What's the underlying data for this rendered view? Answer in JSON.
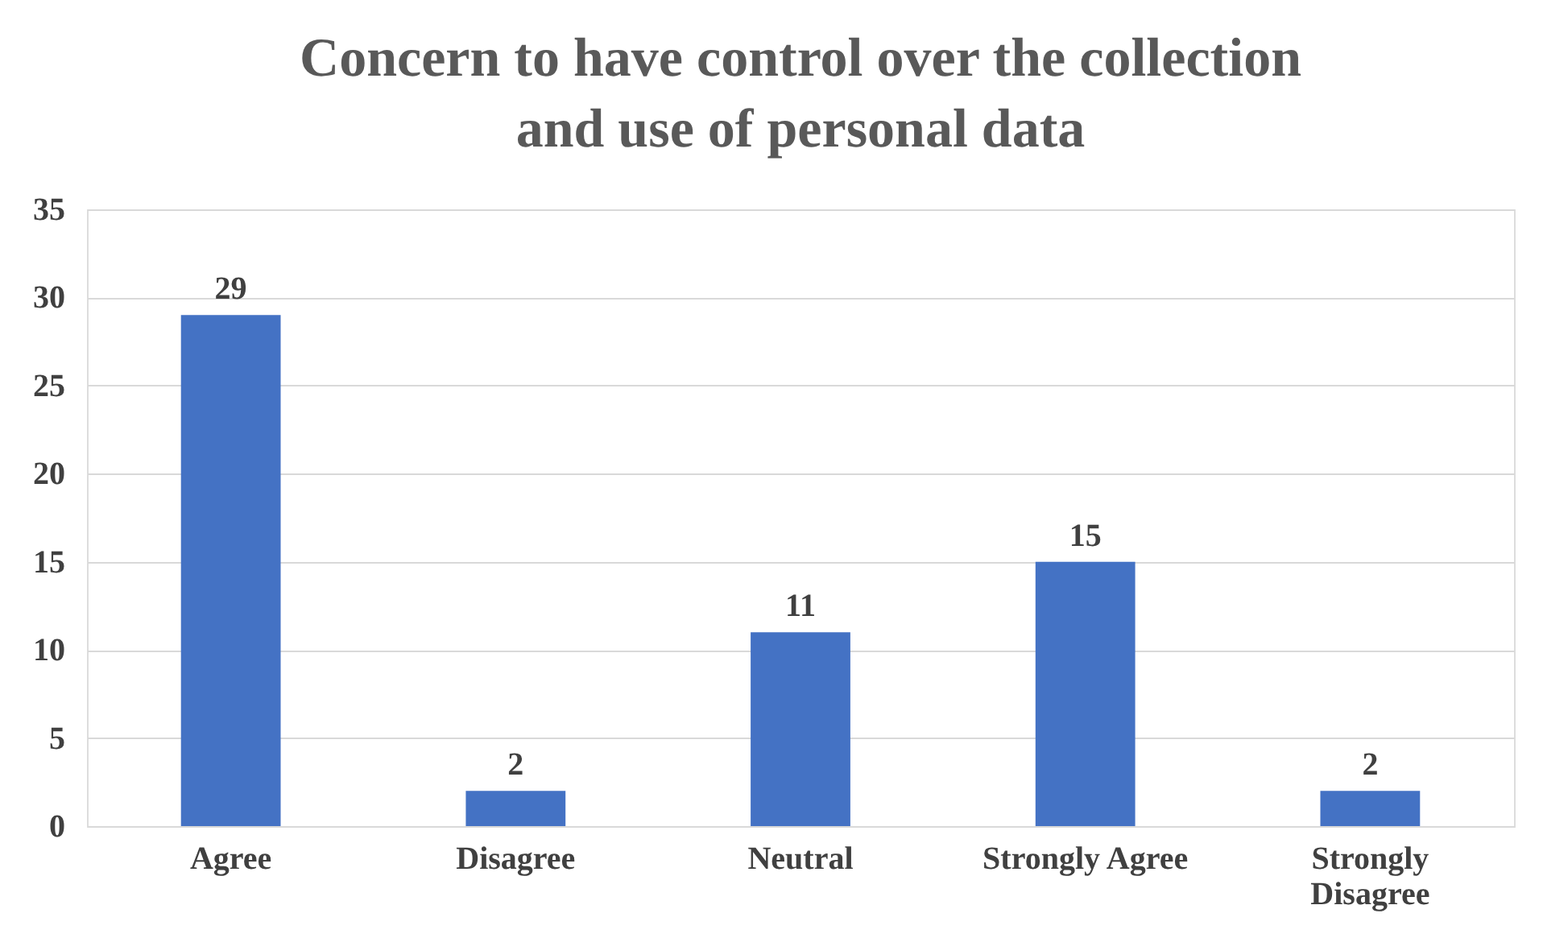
{
  "chart_data": {
    "type": "bar",
    "title": "Concern to have control over the collection and use of personal data",
    "categories": [
      "Agree",
      "Disagree",
      "Neutral",
      "Strongly Agree",
      "Strongly Disagree"
    ],
    "values": [
      29,
      2,
      11,
      15,
      2
    ],
    "color": "#4472c4",
    "ylim": [
      0,
      35
    ],
    "yticks": [
      0,
      5,
      10,
      15,
      20,
      25,
      30,
      35
    ],
    "grid": "y",
    "data_labels": true
  }
}
